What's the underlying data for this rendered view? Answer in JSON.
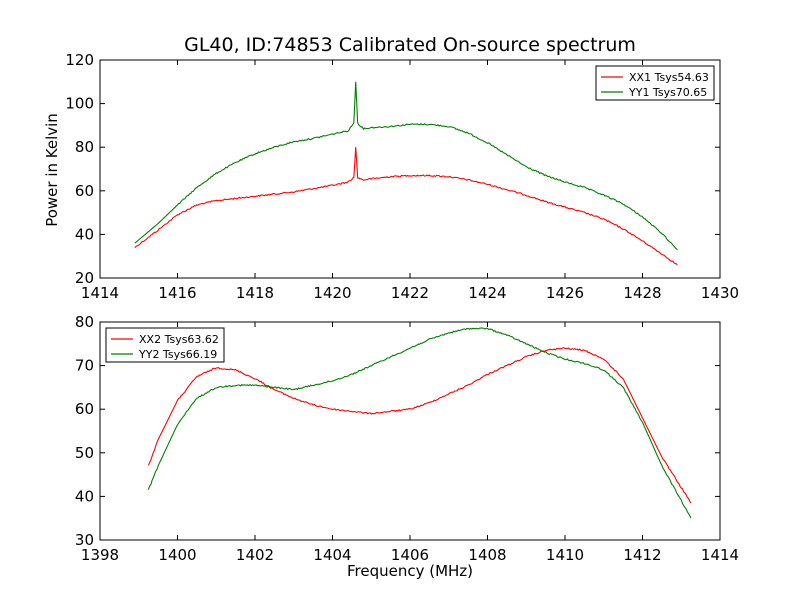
{
  "chart_data": {
    "title": "GL40, ID:74853 Calibrated On-source spectrum",
    "ylabel": "Power in Kelvin",
    "xlabel": "Frequency (MHz)",
    "panels": [
      {
        "type": "line",
        "xlim": [
          1414,
          1430
        ],
        "ylim": [
          20,
          120
        ],
        "xticks": [
          "1414",
          "1416",
          "1418",
          "1420",
          "1422",
          "1424",
          "1426",
          "1428",
          "1430"
        ],
        "yticks": [
          "20",
          "40",
          "60",
          "80",
          "100",
          "120"
        ],
        "legend_position": "top-right",
        "series": [
          {
            "name": "XX1 Tsys54.63",
            "color": "#ff0000",
            "x": [
              1414.9,
              1415.5,
              1416.0,
              1416.5,
              1417.0,
              1417.5,
              1418.0,
              1418.5,
              1419.0,
              1419.5,
              1420.0,
              1420.4,
              1420.55,
              1420.6,
              1420.65,
              1420.8,
              1421.0,
              1421.5,
              1422.0,
              1422.5,
              1423.0,
              1423.5,
              1424.0,
              1424.5,
              1425.0,
              1425.5,
              1426.0,
              1426.5,
              1427.0,
              1427.5,
              1428.0,
              1428.5,
              1428.9
            ],
            "y": [
              34,
              42,
              49,
              53.5,
              55.5,
              56.5,
              57.5,
              58.5,
              59.5,
              61,
              62.5,
              64,
              66,
              80,
              66,
              65,
              65.5,
              66.5,
              67,
              67,
              66.5,
              65,
              63,
              60.5,
              58,
              55,
              52.5,
              50,
              47,
              42.5,
              37,
              31,
              26
            ]
          },
          {
            "name": "YY1 Tsys70.65",
            "color": "#008000",
            "x": [
              1414.9,
              1415.5,
              1416.0,
              1416.5,
              1417.0,
              1417.5,
              1418.0,
              1418.5,
              1419.0,
              1419.5,
              1420.0,
              1420.4,
              1420.55,
              1420.6,
              1420.65,
              1420.8,
              1421.0,
              1421.5,
              1422.0,
              1422.5,
              1423.0,
              1423.5,
              1424.0,
              1424.5,
              1425.0,
              1425.5,
              1426.0,
              1426.5,
              1427.0,
              1427.5,
              1428.0,
              1428.5,
              1428.9
            ],
            "y": [
              36,
              45,
              53.5,
              61.5,
              68,
              73,
              77,
              80,
              82.5,
              84,
              86,
              87.5,
              91,
              110,
              91,
              88.5,
              89,
              89.5,
              90.5,
              90.5,
              89.5,
              86.5,
              82,
              76.5,
              71,
              67,
              64,
              61.5,
              58,
              54,
              48,
              40.5,
              33
            ]
          }
        ]
      },
      {
        "type": "line",
        "xlim": [
          1398,
          1414
        ],
        "ylim": [
          30,
          80
        ],
        "xticks": [
          "1398",
          "1400",
          "1402",
          "1404",
          "1406",
          "1408",
          "1410",
          "1412",
          "1414"
        ],
        "yticks": [
          "30",
          "40",
          "50",
          "60",
          "70",
          "80"
        ],
        "legend_position": "top-left",
        "series": [
          {
            "name": "XX2 Tsys63.62",
            "color": "#ff0000",
            "x": [
              1399.25,
              1399.5,
              1400.0,
              1400.5,
              1401.0,
              1401.5,
              1402.0,
              1402.5,
              1403.0,
              1403.5,
              1404.0,
              1404.5,
              1405.0,
              1405.5,
              1406.0,
              1406.5,
              1407.0,
              1407.5,
              1408.0,
              1408.5,
              1409.0,
              1409.5,
              1410.0,
              1410.5,
              1411.0,
              1411.5,
              1412.0,
              1412.5,
              1413.0,
              1413.25
            ],
            "y": [
              47,
              53,
              62,
              67.5,
              69.5,
              69,
              67,
              64.5,
              62.5,
              61,
              60,
              59.5,
              59,
              59.5,
              60,
              61.5,
              63.5,
              65.5,
              68,
              70,
              72,
              73.5,
              74,
              73.5,
              71.5,
              67,
              58,
              49,
              42,
              38.5
            ]
          },
          {
            "name": "YY2 Tsys66.19",
            "color": "#008000",
            "x": [
              1399.25,
              1399.5,
              1400.0,
              1400.5,
              1401.0,
              1401.5,
              1402.0,
              1402.5,
              1403.0,
              1403.5,
              1404.0,
              1404.5,
              1405.0,
              1405.5,
              1406.0,
              1406.5,
              1407.0,
              1407.5,
              1408.0,
              1408.5,
              1409.0,
              1409.5,
              1410.0,
              1410.5,
              1411.0,
              1411.5,
              1412.0,
              1412.5,
              1413.0,
              1413.25
            ],
            "y": [
              41.5,
              47,
              56.5,
              62.5,
              65,
              65.5,
              65.5,
              65,
              64.5,
              65.5,
              66.5,
              68,
              70,
              72,
              74,
              76,
              77.5,
              78.5,
              78.5,
              77,
              75,
              73,
              71.5,
              70.5,
              69,
              65,
              57,
              47,
              39,
              35
            ]
          }
        ]
      }
    ]
  }
}
